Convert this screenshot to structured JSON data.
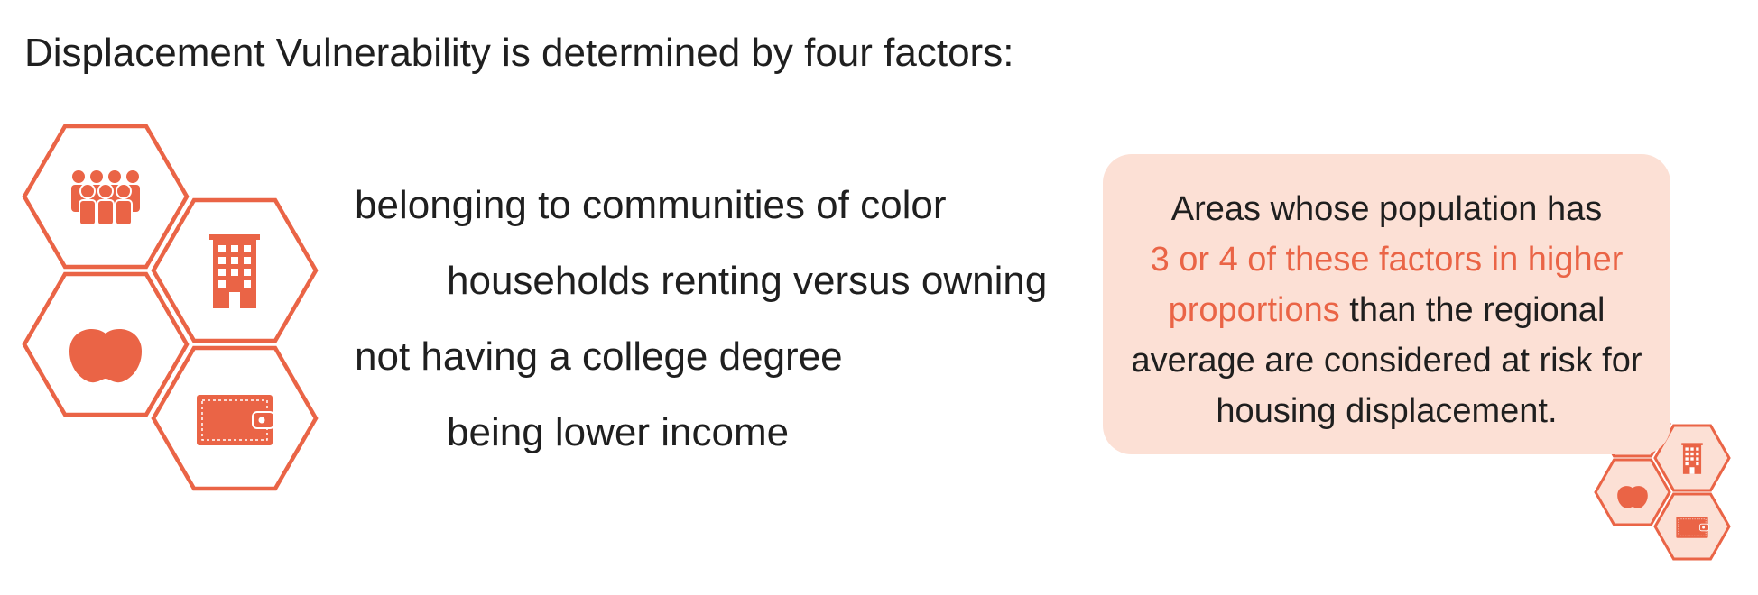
{
  "title": "Displacement Vulnerability is determined by four factors:",
  "colors": {
    "accent": "#ea6446",
    "callout_bg": "#fce0d5"
  },
  "factors": [
    {
      "label": "belonging to communities of color",
      "icon": "people-group-icon"
    },
    {
      "label": "households renting versus owning",
      "icon": "apartment-building-icon"
    },
    {
      "label": "not having a college degree",
      "icon": "apple-icon"
    },
    {
      "label": "being lower income",
      "icon": "wallet-icon"
    }
  ],
  "callout": {
    "line1": "Areas whose population has",
    "highlight_line1": "3 or 4 of these factors in higher",
    "highlight_line2": "proportions",
    "line3_rest": " than the regional",
    "line4": "average are considered at risk for",
    "line5": "housing displacement."
  }
}
